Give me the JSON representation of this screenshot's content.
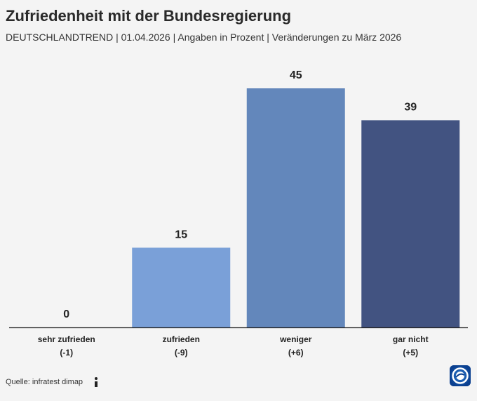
{
  "header": {
    "title": "Zufriedenheit mit der Bundesregierung",
    "subtitle": "DEUTSCHLANDTREND | 01.04.2026 | Angaben in Prozent | Veränderungen zu März 2026"
  },
  "footer": {
    "source": "Quelle: infratest dimap",
    "info_icon": "info-icon",
    "logo_icon": "tagesschau-logo"
  },
  "colors": {
    "background": "#f4f4f4",
    "bars": [
      "#7aa0d8",
      "#7aa0d8",
      "#6387bb",
      "#425381"
    ]
  },
  "chart_data": {
    "type": "bar",
    "categories": [
      "sehr zufrieden",
      "zufrieden",
      "weniger",
      "gar nicht"
    ],
    "changes": [
      "(-1)",
      "(-9)",
      "(+6)",
      "(+5)"
    ],
    "values": [
      0,
      15,
      45,
      39
    ],
    "ylim": [
      0,
      45
    ],
    "grid": false,
    "legend": "none"
  }
}
